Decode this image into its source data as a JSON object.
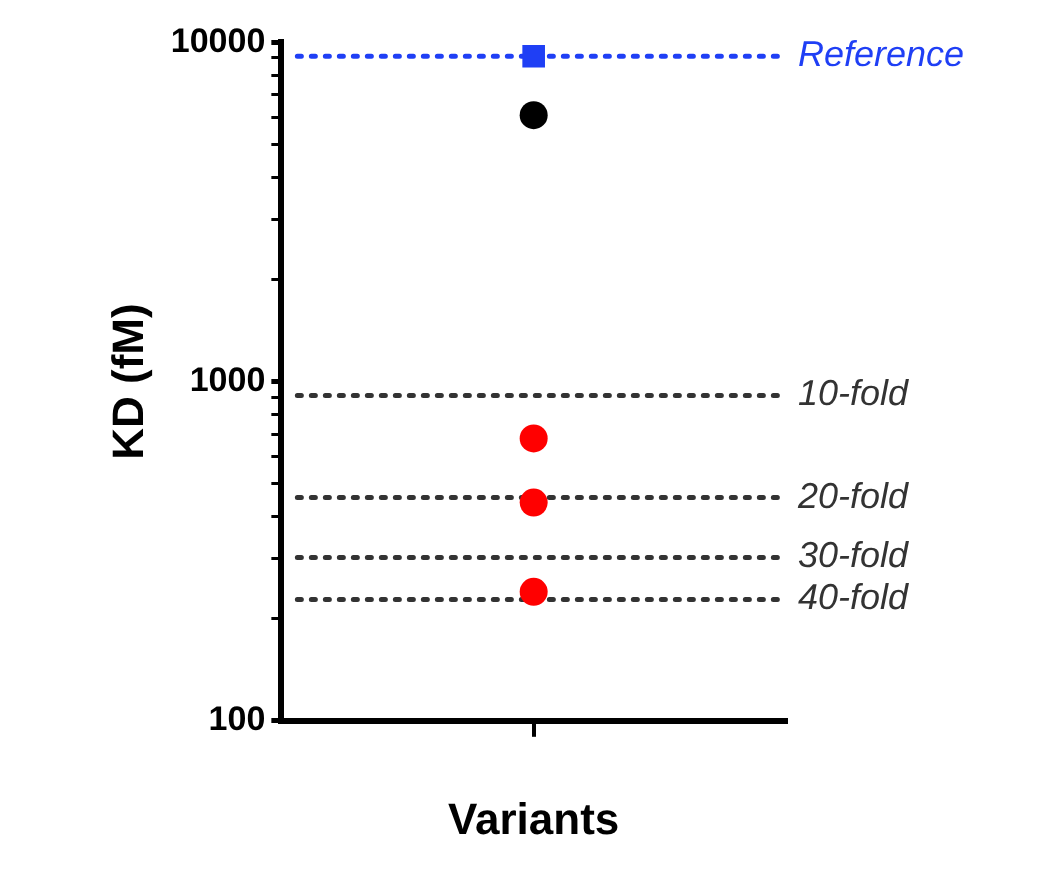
{
  "chart_data": {
    "type": "scatter",
    "ylabel": "KD (fM)",
    "xlabel": "Variants",
    "categories": [
      null
    ],
    "series": [
      {
        "color": "#1f3ff5",
        "values": [
          9100
        ],
        "marker": "square"
      },
      {
        "color": "#000000",
        "values": [
          6100
        ],
        "marker": "circle"
      },
      {
        "color": "#ff0000",
        "values": [
          680
        ],
        "marker": "circle"
      },
      {
        "color": "#ff0000",
        "values": [
          440
        ],
        "marker": "circle"
      },
      {
        "color": "#ff0000",
        "values": [
          240
        ],
        "marker": "circle"
      }
    ],
    "log": true,
    "ylim": [
      100,
      10000
    ],
    "yticks": [
      100,
      {
        "value": 200,
        "label": null
      },
      {
        "value": 300,
        "label": null
      },
      {
        "value": 400,
        "label": null
      },
      {
        "value": 500,
        "label": null
      },
      {
        "value": 600,
        "label": null
      },
      {
        "value": 700,
        "label": null
      },
      {
        "value": 800,
        "label": null
      },
      {
        "value": 900,
        "label": null
      },
      1000,
      {
        "value": 2000,
        "label": null
      },
      {
        "value": 3000,
        "label": null
      },
      {
        "value": 4000,
        "label": null
      },
      {
        "value": 5000,
        "label": null
      },
      {
        "value": 6000,
        "label": null
      },
      {
        "value": 7000,
        "label": null
      },
      {
        "value": 8000,
        "label": null
      },
      {
        "value": 9000,
        "label": null
      },
      10000
    ],
    "grid": false,
    "legend": false,
    "ref_lines": [
      {
        "axis": "y",
        "value": 9100,
        "label": "Reference",
        "color": "#1f3ff5",
        "line_style": "dotted"
      },
      {
        "axis": "y",
        "value": 910,
        "label": "10-fold",
        "color": "#333333",
        "line_style": "dotted"
      },
      {
        "axis": "y",
        "value": 455,
        "label": "20-fold",
        "color": "#333333",
        "line_style": "dotted"
      },
      {
        "axis": "y",
        "value": 303,
        "label": "30-fold",
        "color": "#333333",
        "line_style": "dotted"
      },
      {
        "axis": "y",
        "value": 228,
        "label": "40-fold",
        "color": "#333333",
        "line_style": "dotted"
      }
    ]
  }
}
